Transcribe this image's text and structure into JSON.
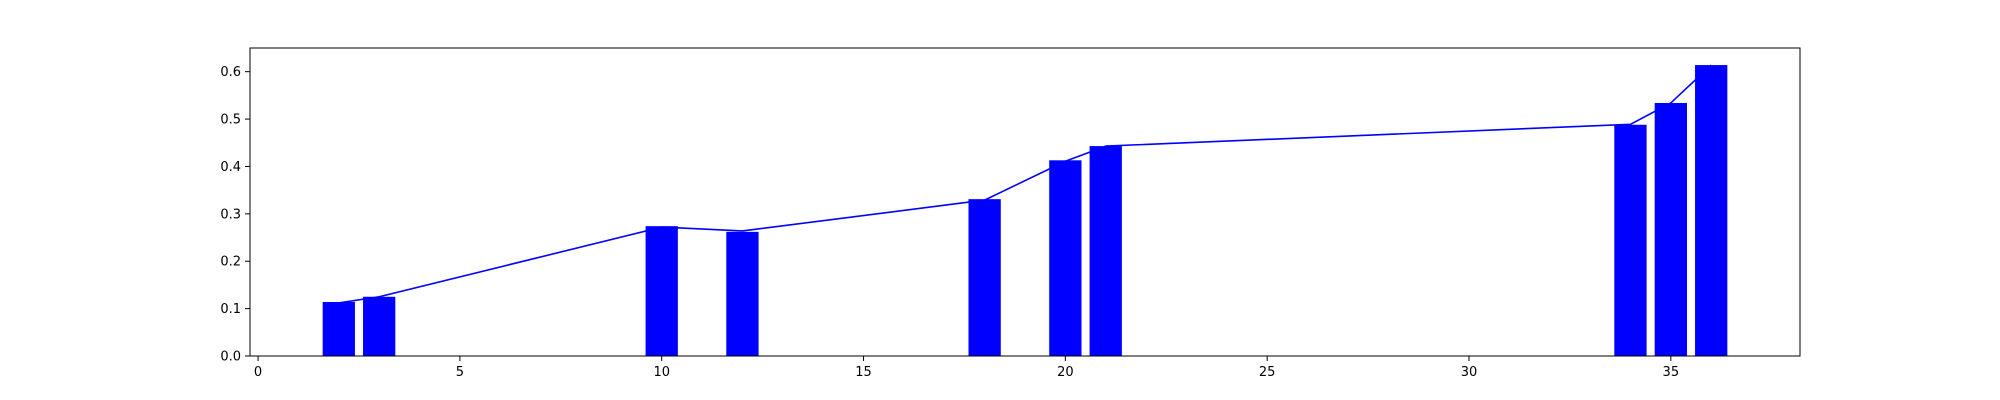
{
  "chart_data": {
    "type": "bar",
    "title": "",
    "xlabel": "",
    "ylabel": "",
    "xlim": [
      -0.2,
      38.2
    ],
    "ylim": [
      0,
      0.65
    ],
    "grid": false,
    "xticks": [
      0,
      5,
      10,
      15,
      20,
      25,
      30,
      35
    ],
    "yticks": [
      0.0,
      0.1,
      0.2,
      0.3,
      0.4,
      0.5,
      0.6
    ],
    "xtick_labels": [
      "0",
      "5",
      "10",
      "15",
      "20",
      "25",
      "30",
      "35"
    ],
    "ytick_labels": [
      "0.0",
      "0.1",
      "0.2",
      "0.3",
      "0.4",
      "0.5",
      "0.6"
    ],
    "bar_width": 0.8,
    "x": [
      2,
      3,
      10,
      12,
      18,
      20,
      21,
      34,
      35,
      36
    ],
    "bars": [
      0.114,
      0.125,
      0.274,
      0.262,
      0.331,
      0.413,
      0.443,
      0.488,
      0.534,
      0.614
    ],
    "line": [
      0.112,
      0.125,
      0.272,
      0.264,
      0.329,
      0.411,
      0.443,
      0.489,
      0.534,
      0.614
    ],
    "bar_color": "#0000ff",
    "line_color": "#0000ff"
  }
}
